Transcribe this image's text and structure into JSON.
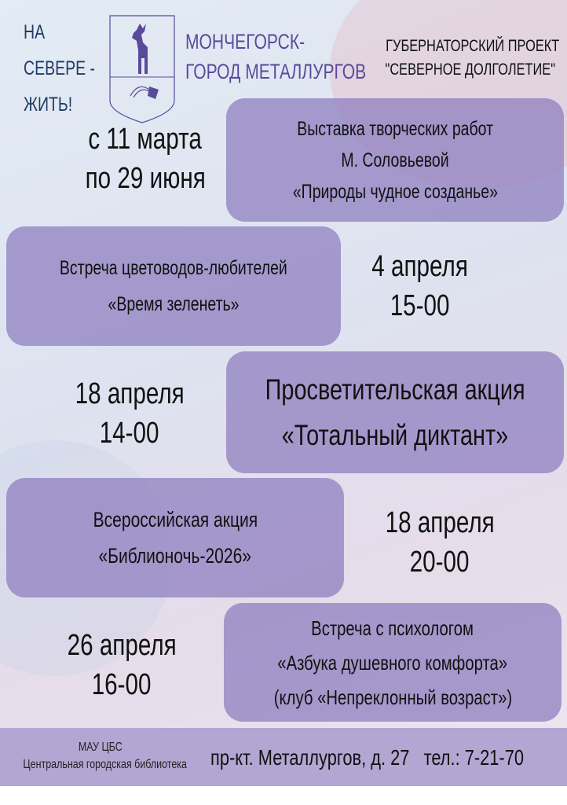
{
  "header": {
    "slogan": [
      "НА",
      "СЕВЕРЕ -",
      "ЖИТЬ!"
    ],
    "city": [
      "МОНЧЕГОРСК-",
      "ГОРОД МЕТАЛЛУРГОВ"
    ],
    "project": [
      "ГУБЕРНАТОРСКИЙ ПРОЕКТ",
      "\"СЕВЕРНОЕ ДОЛГОЛЕТИЕ\""
    ]
  },
  "events": [
    {
      "title": [
        "Выставка творческих работ",
        "М. Соловьевой",
        "«Природы чудное созданье»"
      ],
      "date": [
        "с 11 марта",
        "по 29 июня"
      ]
    },
    {
      "title": [
        "Встреча цветоводов-любителей",
        "«Время зеленеть»"
      ],
      "date": [
        "4 апреля",
        "15-00"
      ]
    },
    {
      "title": [
        "Просветительская акция",
        "«Тотальный диктант»"
      ],
      "date": [
        "18 апреля",
        "14-00"
      ]
    },
    {
      "title": [
        "Всероссийская акция",
        "«Библионочь-2026»"
      ],
      "date": [
        "18 апреля",
        "20-00"
      ]
    },
    {
      "title": [
        "Встреча с психологом",
        "«Азбука душевного комфорта»",
        "(клуб «Непреклонный возраст»)"
      ],
      "date": [
        "26 апреля",
        "16-00"
      ]
    }
  ],
  "footer": {
    "org": [
      "МАУ ЦБС",
      "Центральная городская библиотека"
    ],
    "address": "пр-кт. Металлургов, д. 27",
    "phone": "тел.: 7-21-70"
  },
  "colors": {
    "box": "#8c7cbe",
    "city": "#5a4a9c",
    "slogan": "#1f3c64",
    "footer": "#b3a6d2"
  }
}
